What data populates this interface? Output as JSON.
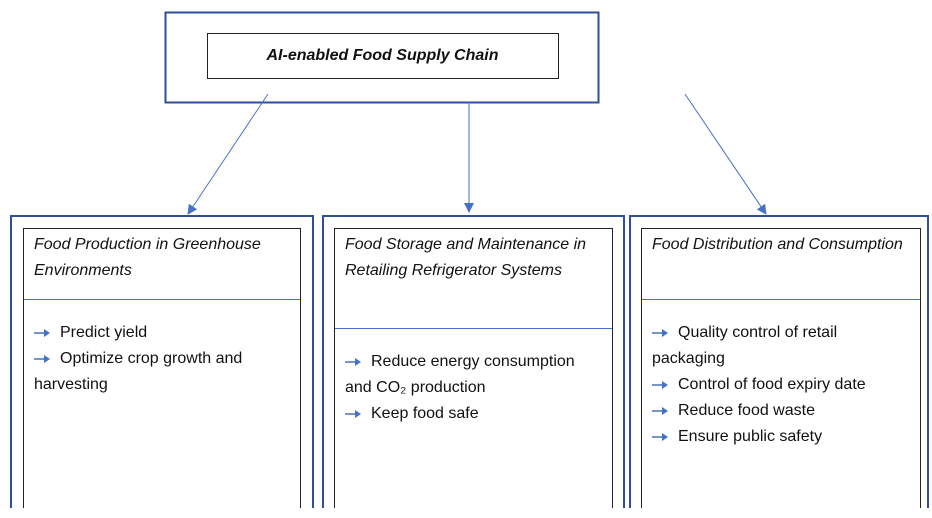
{
  "header": {
    "title": "AI-enabled Food Supply Chain"
  },
  "panels": [
    {
      "heading": "Food Production in Greenhouse Environments",
      "items": [
        "Predict yield",
        "Optimize crop growth and harvesting"
      ]
    },
    {
      "heading": "Food Storage and Maintenance in Retailing Refrigerator Systems",
      "items": [
        "Reduce energy consumption and CO₂ production",
        "Keep food safe"
      ]
    },
    {
      "heading": "Food Distribution and Consumption",
      "items": [
        "Quality control of retail packaging",
        "Control of food expiry date",
        "Reduce food waste",
        "Ensure public safety"
      ]
    }
  ]
}
